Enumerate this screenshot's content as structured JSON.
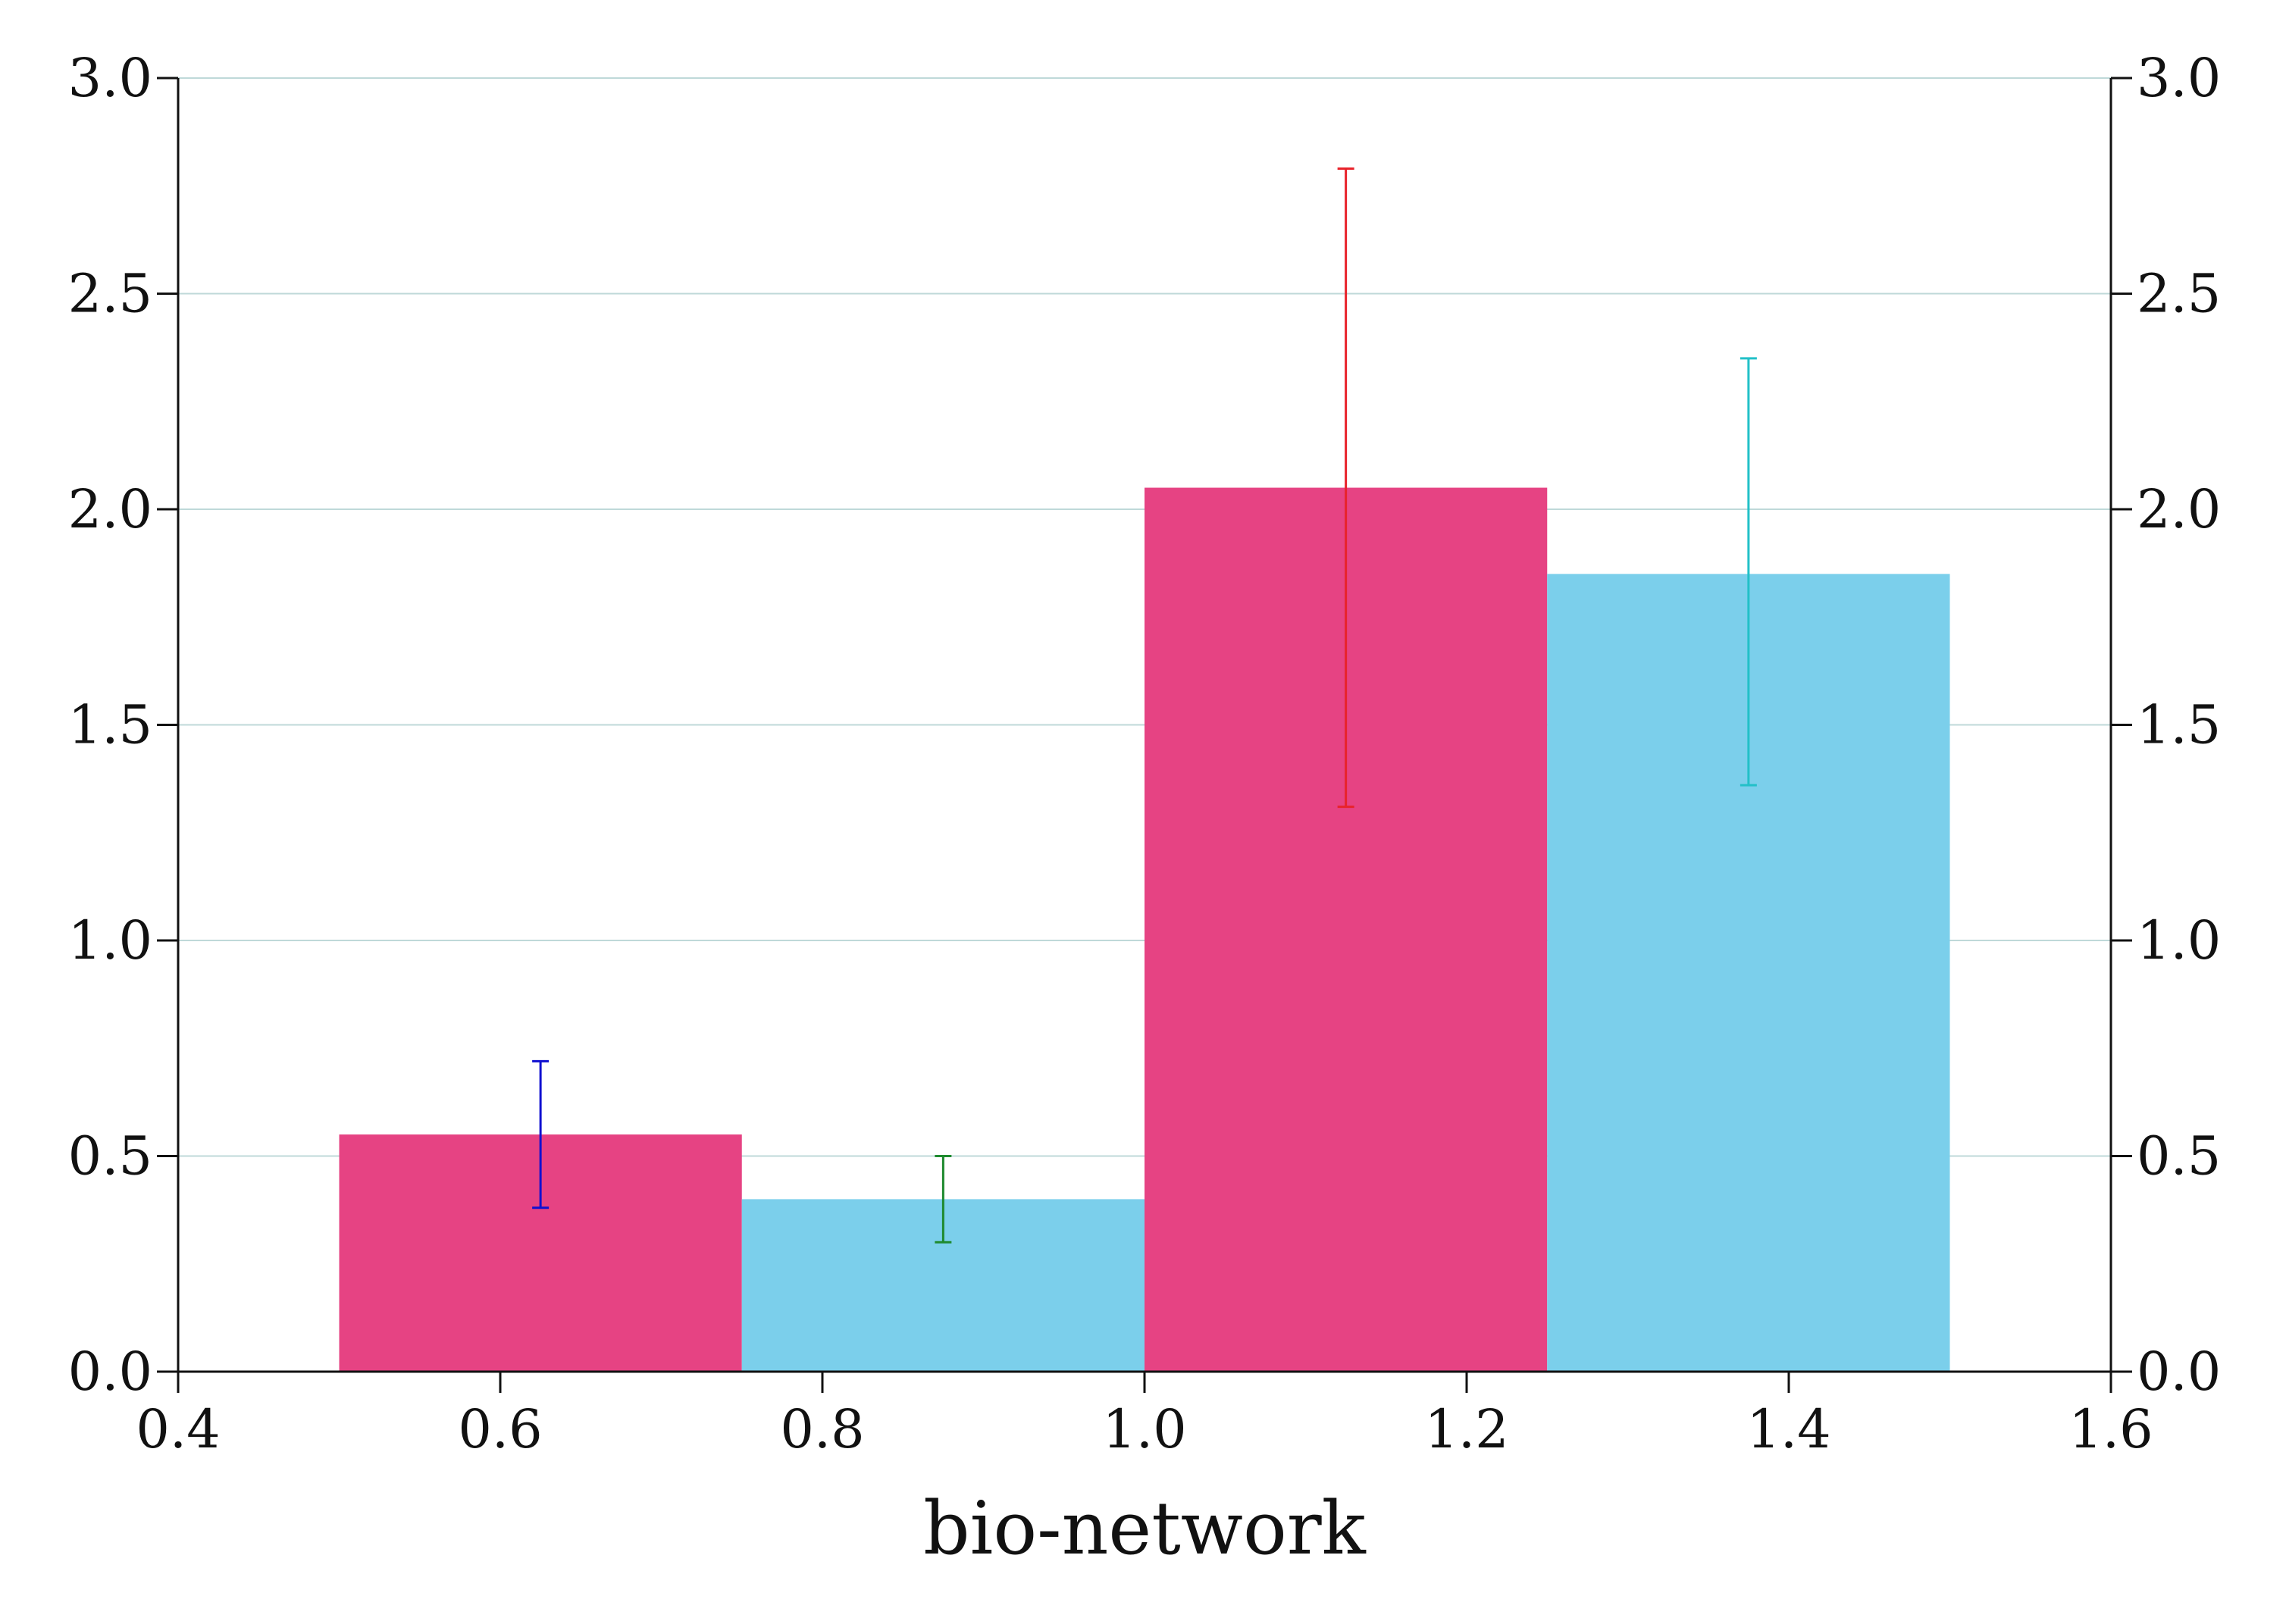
{
  "chart_data": {
    "type": "bar",
    "xlabel": "bio-network",
    "ylabel": "",
    "xlim": [
      0.4,
      1.6
    ],
    "ylim": [
      0.0,
      3.0
    ],
    "x_ticks": [
      "0.4",
      "0.6",
      "0.8",
      "1.0",
      "1.2",
      "1.4",
      "1.6"
    ],
    "y_ticks": [
      "0.0",
      "0.5",
      "1.0",
      "1.5",
      "2.0",
      "2.5",
      "3.0"
    ],
    "y_ticks_right": [
      "0.0",
      "0.5",
      "1.0",
      "1.5",
      "2.0",
      "2.5",
      "3.0"
    ],
    "grid": "horizontal",
    "legend": "none",
    "bar_width": 0.25,
    "bars": [
      {
        "x": 0.625,
        "value": 0.55,
        "err_low": 0.38,
        "err_high": 0.72,
        "color": "#E64383",
        "err_color": "#1010D0"
      },
      {
        "x": 0.875,
        "value": 0.4,
        "err_low": 0.3,
        "err_high": 0.5,
        "color": "#7BCFEB",
        "err_color": "#1E8A2E"
      },
      {
        "x": 1.125,
        "value": 2.05,
        "err_low": 1.31,
        "err_high": 2.79,
        "color": "#E64383",
        "err_color": "#E8232B"
      },
      {
        "x": 1.375,
        "value": 1.85,
        "err_low": 1.36,
        "err_high": 2.35,
        "color": "#7BCFEB",
        "err_color": "#22C0C8"
      }
    ],
    "colors": {
      "axis": "#111111",
      "grid": "#BFD9D9"
    }
  }
}
